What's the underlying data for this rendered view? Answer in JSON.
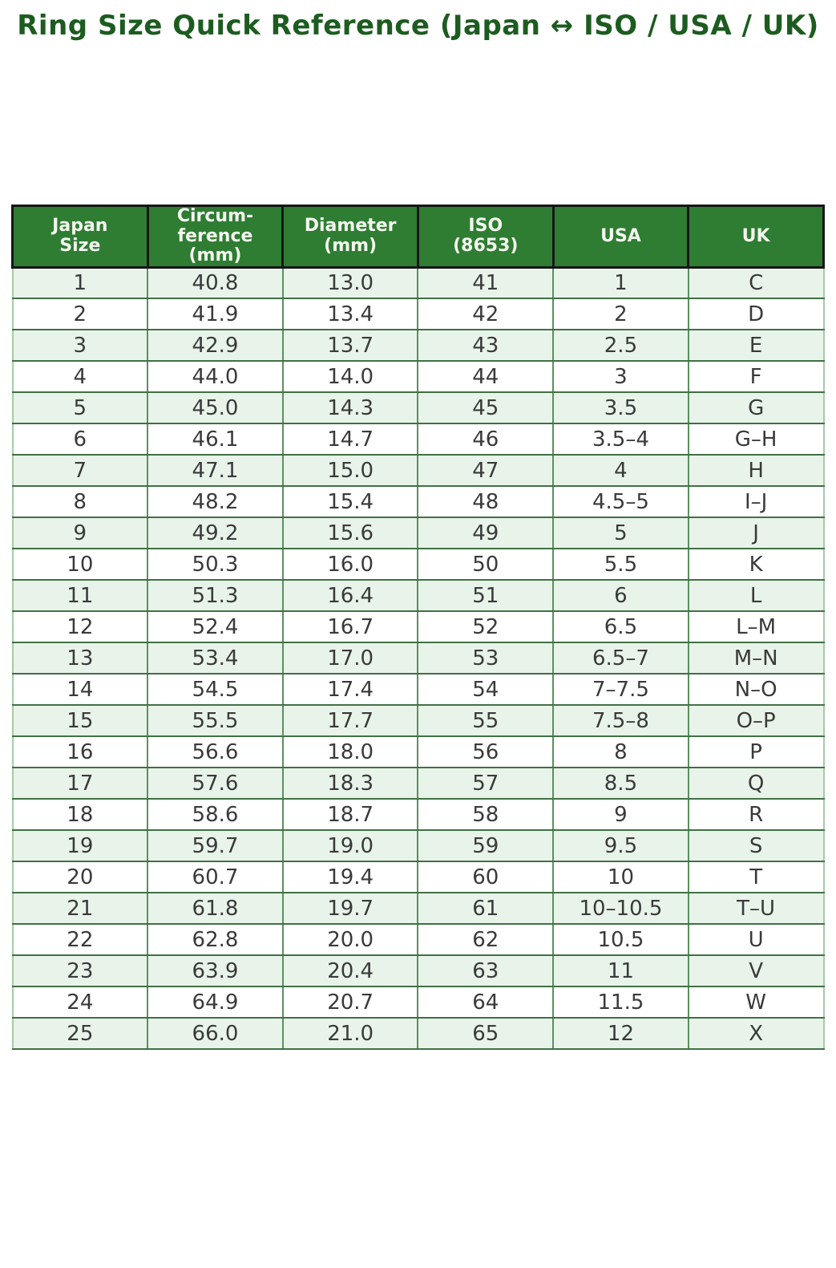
{
  "page": {
    "title": "Ring Size Quick Reference (Japan ↔ ISO / USA / UK)"
  },
  "colors": {
    "title_color": "#1d5c20",
    "header_bg": "#2e7d32",
    "header_text": "#f4f7ef",
    "header_border": "#161616",
    "grid": "#417045",
    "grid_light": "#5c8f61",
    "edge_light": "#a9c9ab",
    "row_alt": "#e8f4e9",
    "row_plain": "#ffffff",
    "body_text": "#3a3a3a"
  },
  "table": {
    "header_display": [
      "Japan\nSize",
      "Circum-\nference\n(mm)",
      "Diameter\n(mm)",
      "ISO\n(8653)",
      "USA",
      "UK"
    ]
  },
  "chart_data": {
    "type": "table",
    "title": "Ring Size Quick Reference (Japan ↔ ISO / USA / UK)",
    "columns": [
      "Japan Size",
      "Circumference (mm)",
      "Diameter (mm)",
      "ISO (8653)",
      "USA",
      "UK"
    ],
    "rows": [
      [
        "1",
        "40.8",
        "13.0",
        "41",
        "1",
        "C"
      ],
      [
        "2",
        "41.9",
        "13.4",
        "42",
        "2",
        "D"
      ],
      [
        "3",
        "42.9",
        "13.7",
        "43",
        "2.5",
        "E"
      ],
      [
        "4",
        "44.0",
        "14.0",
        "44",
        "3",
        "F"
      ],
      [
        "5",
        "45.0",
        "14.3",
        "45",
        "3.5",
        "G"
      ],
      [
        "6",
        "46.1",
        "14.7",
        "46",
        "3.5–4",
        "G–H"
      ],
      [
        "7",
        "47.1",
        "15.0",
        "47",
        "4",
        "H"
      ],
      [
        "8",
        "48.2",
        "15.4",
        "48",
        "4.5–5",
        "I–J"
      ],
      [
        "9",
        "49.2",
        "15.6",
        "49",
        "5",
        "J"
      ],
      [
        "10",
        "50.3",
        "16.0",
        "50",
        "5.5",
        "K"
      ],
      [
        "11",
        "51.3",
        "16.4",
        "51",
        "6",
        "L"
      ],
      [
        "12",
        "52.4",
        "16.7",
        "52",
        "6.5",
        "L–M"
      ],
      [
        "13",
        "53.4",
        "17.0",
        "53",
        "6.5–7",
        "M–N"
      ],
      [
        "14",
        "54.5",
        "17.4",
        "54",
        "7–7.5",
        "N–O"
      ],
      [
        "15",
        "55.5",
        "17.7",
        "55",
        "7.5–8",
        "O–P"
      ],
      [
        "16",
        "56.6",
        "18.0",
        "56",
        "8",
        "P"
      ],
      [
        "17",
        "57.6",
        "18.3",
        "57",
        "8.5",
        "Q"
      ],
      [
        "18",
        "58.6",
        "18.7",
        "58",
        "9",
        "R"
      ],
      [
        "19",
        "59.7",
        "19.0",
        "59",
        "9.5",
        "S"
      ],
      [
        "20",
        "60.7",
        "19.4",
        "60",
        "10",
        "T"
      ],
      [
        "21",
        "61.8",
        "19.7",
        "61",
        "10–10.5",
        "T–U"
      ],
      [
        "22",
        "62.8",
        "20.0",
        "62",
        "10.5",
        "U"
      ],
      [
        "23",
        "63.9",
        "20.4",
        "63",
        "11",
        "V"
      ],
      [
        "24",
        "64.9",
        "20.7",
        "64",
        "11.5",
        "W"
      ],
      [
        "25",
        "66.0",
        "21.0",
        "65",
        "12",
        "X"
      ]
    ]
  }
}
